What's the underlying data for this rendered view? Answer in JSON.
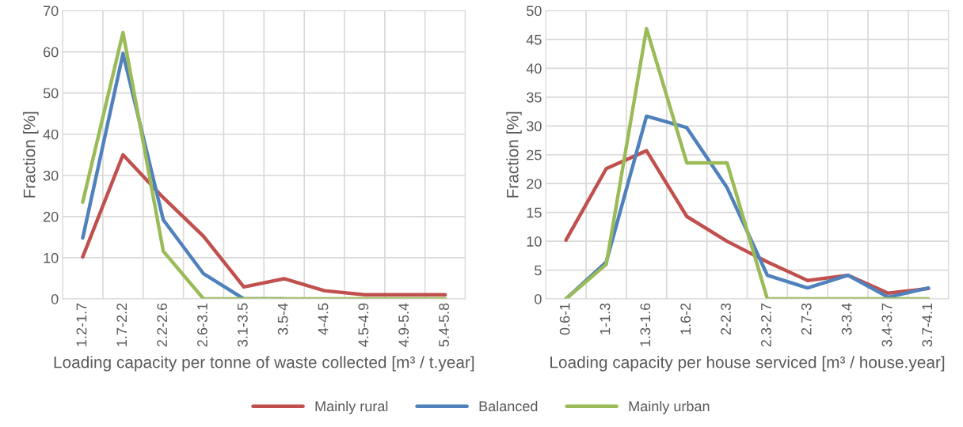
{
  "chart_data": [
    {
      "type": "line",
      "categories": [
        "1.2-1.7",
        "1.7-2.2",
        "2.2-2.6",
        "2.6-3.1",
        "3.1-3.5",
        "3.5-4",
        "4-4.5",
        "4.5-4.9",
        "4.9-5.4",
        "5.4-5.8"
      ],
      "xlabel": "Loading capacity per tonne of waste collected [m³ / t.year]",
      "ylabel": "Fraction [%]",
      "ylim": [
        0,
        70
      ],
      "yticks": [
        0,
        10,
        20,
        30,
        40,
        50,
        60,
        70
      ],
      "grid": true,
      "legend": "bottom",
      "marker": "none",
      "line_style": "solid",
      "series": [
        {
          "name": "Mainly rural",
          "color": "#c0504d",
          "values": [
            10.2,
            35,
            24.6,
            15.2,
            2.9,
            4.9,
            2,
            1,
            1,
            1
          ]
        },
        {
          "name": "Balanced",
          "color": "#4f81bd",
          "values": [
            14.8,
            59.6,
            19.2,
            6.1,
            0,
            0,
            null,
            null,
            null,
            null
          ]
        },
        {
          "name": "Mainly urban",
          "color": "#9bbb59",
          "values": [
            23.5,
            64.7,
            11.6,
            0,
            0,
            0,
            0,
            0,
            0,
            0
          ]
        }
      ]
    },
    {
      "type": "line",
      "categories": [
        "0.6-1",
        "1-1.3",
        "1.3-1.6",
        "1.6-2",
        "2-2.3",
        "2.3-2.7",
        "2.7-3",
        "3-3.4",
        "3.4-3.7",
        "3.7-4.1"
      ],
      "xlabel": "Loading capacity per house serviced [m³ / house.year]",
      "ylabel": "Fraction [%]",
      "ylim": [
        0,
        50
      ],
      "yticks": [
        0,
        5,
        10,
        15,
        20,
        25,
        30,
        35,
        40,
        45,
        50
      ],
      "grid": true,
      "legend": "bottom",
      "marker": "none",
      "line_style": "solid",
      "series": [
        {
          "name": "Mainly rural",
          "color": "#c0504d",
          "values": [
            10.2,
            22.6,
            25.7,
            14.3,
            10,
            6.4,
            3.2,
            4.1,
            1,
            1.8
          ]
        },
        {
          "name": "Balanced",
          "color": "#4f81bd",
          "values": [
            0,
            6.4,
            31.7,
            29.7,
            19.3,
            4.1,
            1.9,
            4.1,
            0.3,
            1.9
          ]
        },
        {
          "name": "Mainly urban",
          "color": "#9bbb59",
          "values": [
            0,
            6,
            46.9,
            23.6,
            23.6,
            0,
            0,
            0,
            0,
            0
          ]
        }
      ]
    }
  ]
}
